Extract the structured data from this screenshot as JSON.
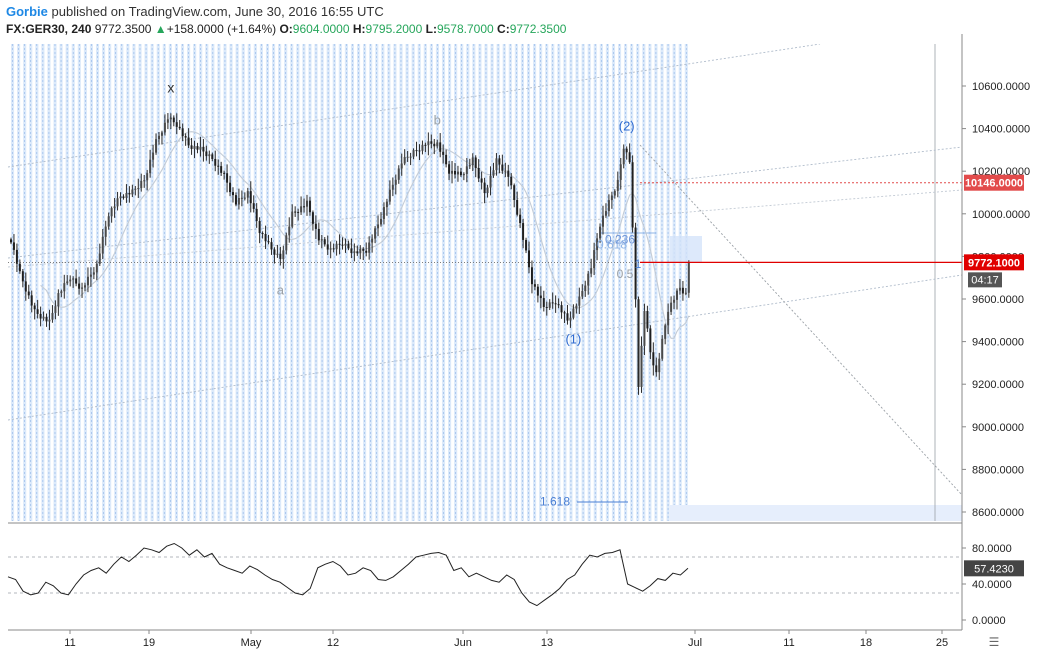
{
  "header": {
    "publisher": "Gorbie",
    "published_text": "published on TradingView.com, June 30, 2016 16:55 UTC",
    "symbol": "FX:GER30, 240",
    "last": "9772.3500",
    "change": "+158.0000 (+1.64%)",
    "open_label": "O:",
    "open": "9604.0000",
    "high_label": "H:",
    "high": "9795.2000",
    "low_label": "L:",
    "low": "9578.7000",
    "close_label": "C:",
    "close": "9772.3500"
  },
  "chart_data": [
    {
      "type": "candlestick",
      "title": "",
      "x_ticks": [
        "11",
        "19",
        "May",
        "12",
        "Jun",
        "13",
        "Jul",
        "11",
        "18",
        "25"
      ],
      "y_ticks": [
        "10600.0000",
        "10400.0000",
        "10200.0000",
        "10000.0000",
        "9800.0000",
        "9600.0000",
        "9400.0000",
        "9200.0000",
        "9000.0000",
        "8800.0000",
        "8600.0000"
      ],
      "ylim": [
        8550,
        10800
      ],
      "price_path": [
        {
          "t": 0,
          "v": 9880
        },
        {
          "t": 3,
          "v": 9720
        },
        {
          "t": 8,
          "v": 9540
        },
        {
          "t": 13,
          "v": 9490
        },
        {
          "t": 16,
          "v": 9620
        },
        {
          "t": 20,
          "v": 9700
        },
        {
          "t": 24,
          "v": 9650
        },
        {
          "t": 29,
          "v": 9760
        },
        {
          "t": 33,
          "v": 10000
        },
        {
          "t": 37,
          "v": 10080
        },
        {
          "t": 41,
          "v": 10100
        },
        {
          "t": 45,
          "v": 10160
        },
        {
          "t": 49,
          "v": 10340
        },
        {
          "t": 53,
          "v": 10450
        },
        {
          "t": 56,
          "v": 10420
        },
        {
          "t": 60,
          "v": 10320
        },
        {
          "t": 64,
          "v": 10300
        },
        {
          "t": 68,
          "v": 10260
        },
        {
          "t": 72,
          "v": 10180
        },
        {
          "t": 76,
          "v": 10050
        },
        {
          "t": 80,
          "v": 10100
        },
        {
          "t": 84,
          "v": 9920
        },
        {
          "t": 88,
          "v": 9830
        },
        {
          "t": 91,
          "v": 9790
        },
        {
          "t": 95,
          "v": 10000
        },
        {
          "t": 100,
          "v": 10050
        },
        {
          "t": 104,
          "v": 9880
        },
        {
          "t": 108,
          "v": 9830
        },
        {
          "t": 112,
          "v": 9860
        },
        {
          "t": 116,
          "v": 9820
        },
        {
          "t": 120,
          "v": 9830
        },
        {
          "t": 124,
          "v": 9950
        },
        {
          "t": 128,
          "v": 10100
        },
        {
          "t": 132,
          "v": 10240
        },
        {
          "t": 136,
          "v": 10290
        },
        {
          "t": 140,
          "v": 10330
        },
        {
          "t": 144,
          "v": 10330
        },
        {
          "t": 148,
          "v": 10200
        },
        {
          "t": 152,
          "v": 10180
        },
        {
          "t": 156,
          "v": 10250
        },
        {
          "t": 160,
          "v": 10100
        },
        {
          "t": 164,
          "v": 10250
        },
        {
          "t": 168,
          "v": 10180
        },
        {
          "t": 172,
          "v": 9950
        },
        {
          "t": 176,
          "v": 9680
        },
        {
          "t": 180,
          "v": 9560
        },
        {
          "t": 184,
          "v": 9590
        },
        {
          "t": 188,
          "v": 9500
        },
        {
          "t": 192,
          "v": 9600
        },
        {
          "t": 196,
          "v": 9750
        },
        {
          "t": 199,
          "v": 9950
        },
        {
          "t": 202,
          "v": 10050
        },
        {
          "t": 205,
          "v": 10150
        },
        {
          "t": 207,
          "v": 10320
        },
        {
          "t": 209,
          "v": 10250
        },
        {
          "t": 211,
          "v": 9600
        },
        {
          "t": 212,
          "v": 9200
        },
        {
          "t": 214,
          "v": 9550
        },
        {
          "t": 216,
          "v": 9350
        },
        {
          "t": 218,
          "v": 9250
        },
        {
          "t": 220,
          "v": 9400
        },
        {
          "t": 222,
          "v": 9550
        },
        {
          "t": 224,
          "v": 9600
        },
        {
          "t": 226,
          "v": 9650
        },
        {
          "t": 228,
          "v": 9620
        },
        {
          "t": 229,
          "v": 9772
        }
      ],
      "wave_labels": [
        {
          "text": "x",
          "t": 54,
          "v": 10570
        },
        {
          "text": "a",
          "t": 91,
          "v": 9620
        },
        {
          "text": "b",
          "t": 144,
          "v": 10420
        },
        {
          "text": "(2)",
          "t": 208,
          "v": 10390
        },
        {
          "text": "(1)",
          "t": 190,
          "v": 9390
        }
      ],
      "fib_labels": [
        {
          "text": "0.5",
          "v": 9718
        },
        {
          "text": "1",
          "v": 9765
        },
        {
          "text": "0.618",
          "v": 9855
        },
        {
          "text": "0.236",
          "v": 9880
        },
        {
          "text": "1.618",
          "v": 8650
        }
      ],
      "price_lines": [
        {
          "label": "10146.0000",
          "v": 10146,
          "color": "#e24b4b",
          "style": "dotted"
        },
        {
          "label": "9772.1000",
          "v": 9772.1,
          "color": "#e00000",
          "style": "solid"
        }
      ],
      "countdown": "04:17"
    },
    {
      "type": "line",
      "title": "",
      "y_ticks": [
        "80.0000",
        "40.0000",
        "0.0000"
      ],
      "ylim": [
        -5,
        100
      ],
      "levels": [
        70,
        30
      ],
      "last_value": "57.4230",
      "values": [
        48,
        45,
        32,
        28,
        30,
        42,
        38,
        30,
        28,
        40,
        50,
        55,
        58,
        52,
        62,
        70,
        65,
        72,
        80,
        78,
        75,
        82,
        85,
        80,
        72,
        78,
        70,
        74,
        62,
        58,
        55,
        52,
        60,
        56,
        50,
        45,
        42,
        36,
        30,
        28,
        35,
        58,
        62,
        65,
        60,
        50,
        52,
        58,
        55,
        45,
        44,
        48,
        55,
        62,
        70,
        72,
        74,
        75,
        72,
        55,
        58,
        48,
        52,
        48,
        44,
        42,
        50,
        45,
        30,
        20,
        16,
        22,
        28,
        35,
        45,
        50,
        62,
        72,
        70,
        74,
        75,
        78,
        40,
        36,
        32,
        38,
        46,
        44,
        52,
        50,
        57.423
      ]
    }
  ]
}
